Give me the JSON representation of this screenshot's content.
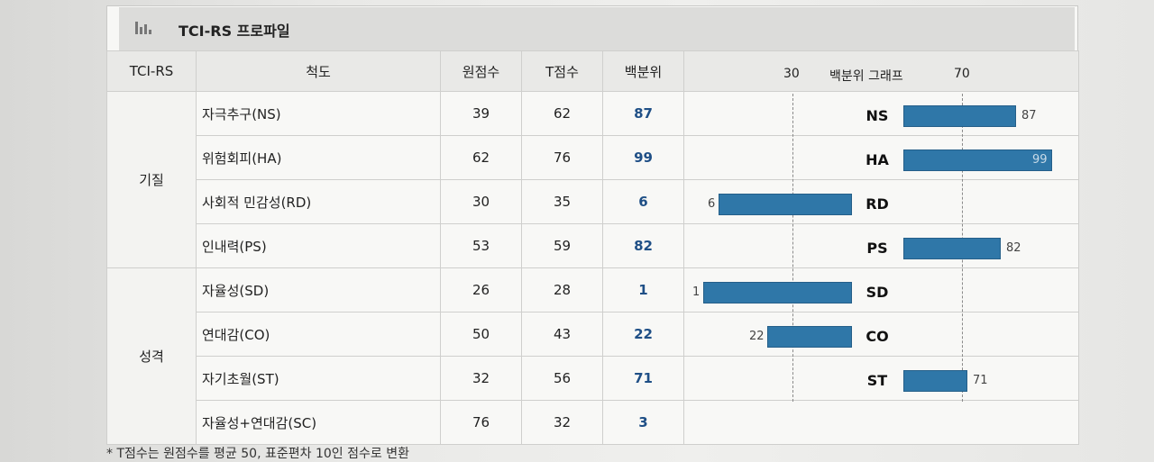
{
  "title": "TCI-RS 프로파일",
  "headers": {
    "tci": "TCI-RS",
    "scale": "척도",
    "raw": "원점수",
    "t": "T점수",
    "pct": "백분위",
    "graph": "백분위 그래프",
    "tick_left": "30",
    "tick_right": "70"
  },
  "groups": [
    {
      "name": "기질",
      "rows": [
        {
          "abbr": "NS",
          "scale": "자극추구(NS)",
          "raw": "39",
          "t": "62",
          "pct": "87"
        },
        {
          "abbr": "HA",
          "scale": "위험회피(HA)",
          "raw": "62",
          "t": "76",
          "pct": "99"
        },
        {
          "abbr": "RD",
          "scale": "사회적 민감성(RD)",
          "raw": "30",
          "t": "35",
          "pct": "6"
        },
        {
          "abbr": "PS",
          "scale": "인내력(PS)",
          "raw": "53",
          "t": "59",
          "pct": "82"
        }
      ]
    },
    {
      "name": "성격",
      "rows": [
        {
          "abbr": "SD",
          "scale": "자율성(SD)",
          "raw": "26",
          "t": "28",
          "pct": "1"
        },
        {
          "abbr": "CO",
          "scale": "연대감(CO)",
          "raw": "50",
          "t": "43",
          "pct": "22"
        },
        {
          "abbr": "ST",
          "scale": "자기초월(ST)",
          "raw": "32",
          "t": "56",
          "pct": "71"
        },
        {
          "abbr": "",
          "scale": "자율성+연대감(SC)",
          "raw": "76",
          "t": "32",
          "pct": "3"
        }
      ]
    }
  ],
  "chart_data": {
    "type": "bar",
    "title": "백분위 그래프",
    "categories": [
      "NS",
      "HA",
      "RD",
      "PS",
      "SD",
      "CO",
      "ST"
    ],
    "values": [
      87,
      99,
      6,
      82,
      1,
      22,
      71
    ],
    "reference_lines": [
      30,
      70
    ],
    "center": 50,
    "xlim": [
      0,
      100
    ]
  },
  "footnote": "* T점수는 원점수를 평균 50, 표준편차 10인 점수로 변환",
  "colors": {
    "bar": "#2f77a8",
    "percentile_text": "#1f4f86"
  }
}
